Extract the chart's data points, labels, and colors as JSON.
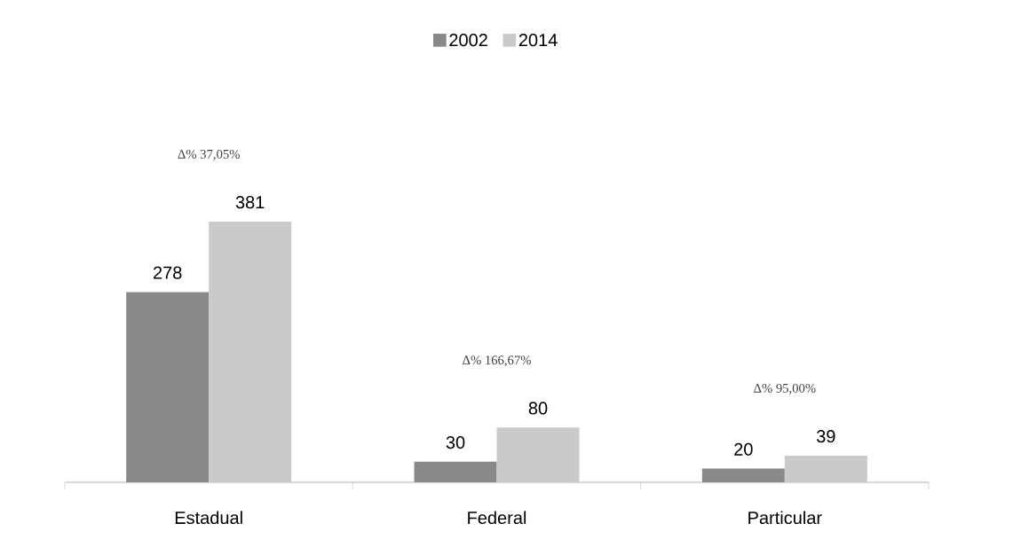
{
  "chart_data": {
    "type": "bar",
    "categories": [
      "Estadual",
      "Federal",
      "Particular"
    ],
    "series": [
      {
        "name": "2002",
        "color": "#898989",
        "values": [
          278,
          30,
          20
        ]
      },
      {
        "name": "2014",
        "color": "#cacaca",
        "values": [
          381,
          80,
          39
        ]
      }
    ],
    "data_labels": true,
    "legend": "top",
    "annotations": [
      "Δ% 37,05%",
      "Δ% 166,67%",
      "Δ% 95,00%"
    ]
  }
}
